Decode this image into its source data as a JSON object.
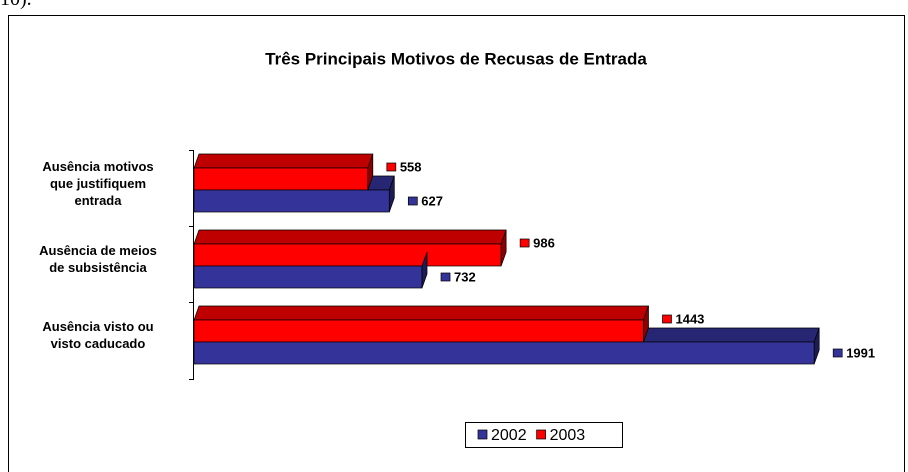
{
  "fragment": "10).",
  "chart_data": {
    "type": "bar3d_horizontal",
    "title": "Três Principais Motivos de Recusas de Entrada",
    "categories": [
      "Ausência motivos que justifiquem entrada",
      "Ausência de meios de subsistência",
      "Ausência visto ou visto caducado"
    ],
    "series": [
      {
        "name": "2002",
        "color": "#333399",
        "values": [
          627,
          732,
          1991
        ]
      },
      {
        "name": "2003",
        "color": "#ff0000",
        "values": [
          558,
          986,
          1443
        ]
      }
    ],
    "xlim": [
      0,
      2000
    ],
    "legend": "bottom"
  }
}
